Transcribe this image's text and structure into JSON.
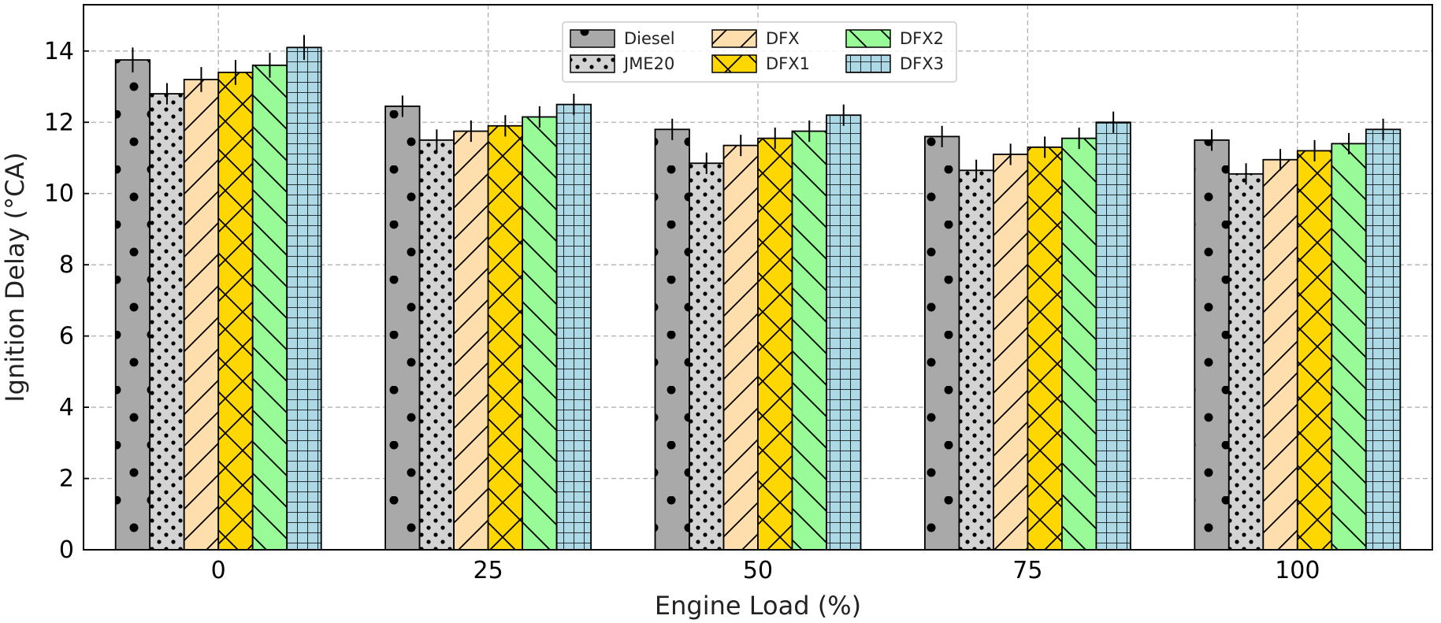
{
  "chart_data": {
    "type": "bar",
    "xlabel": "Engine Load (%)",
    "ylabel": "Ignition Delay (°CA)",
    "categories": [
      "0",
      "25",
      "50",
      "75",
      "100"
    ],
    "ylim": [
      0,
      15.3
    ],
    "yticks": [
      0,
      2,
      4,
      6,
      8,
      10,
      12,
      14
    ],
    "grid": true,
    "legend_position": "top-center",
    "series": [
      {
        "name": "Diesel",
        "values": [
          13.75,
          12.45,
          11.8,
          11.6,
          11.5
        ],
        "errors": [
          0.35,
          0.3,
          0.3,
          0.3,
          0.3
        ],
        "color": "#a9a9a9",
        "pattern": "dots-large"
      },
      {
        "name": "JME20",
        "values": [
          12.8,
          11.5,
          10.85,
          10.65,
          10.55
        ],
        "errors": [
          0.3,
          0.3,
          0.3,
          0.3,
          0.3
        ],
        "color": "#d3d3d3",
        "pattern": "dots-small"
      },
      {
        "name": "DFX",
        "values": [
          13.2,
          11.75,
          11.35,
          11.1,
          10.95
        ],
        "errors": [
          0.35,
          0.3,
          0.3,
          0.3,
          0.3
        ],
        "color": "#ffdead",
        "pattern": "diagonal"
      },
      {
        "name": "DFX1",
        "values": [
          13.4,
          11.9,
          11.55,
          11.3,
          11.2
        ],
        "errors": [
          0.35,
          0.3,
          0.3,
          0.3,
          0.3
        ],
        "color": "#ffd700",
        "pattern": "crosshatch"
      },
      {
        "name": "DFX2",
        "values": [
          13.6,
          12.15,
          11.75,
          11.55,
          11.4
        ],
        "errors": [
          0.35,
          0.3,
          0.3,
          0.3,
          0.3
        ],
        "color": "#98fb98",
        "pattern": "backdiagonal"
      },
      {
        "name": "DFX3",
        "values": [
          14.1,
          12.5,
          12.2,
          12.0,
          11.8
        ],
        "errors": [
          0.35,
          0.3,
          0.3,
          0.3,
          0.3
        ],
        "color": "#add8e6",
        "pattern": "grid"
      }
    ]
  }
}
